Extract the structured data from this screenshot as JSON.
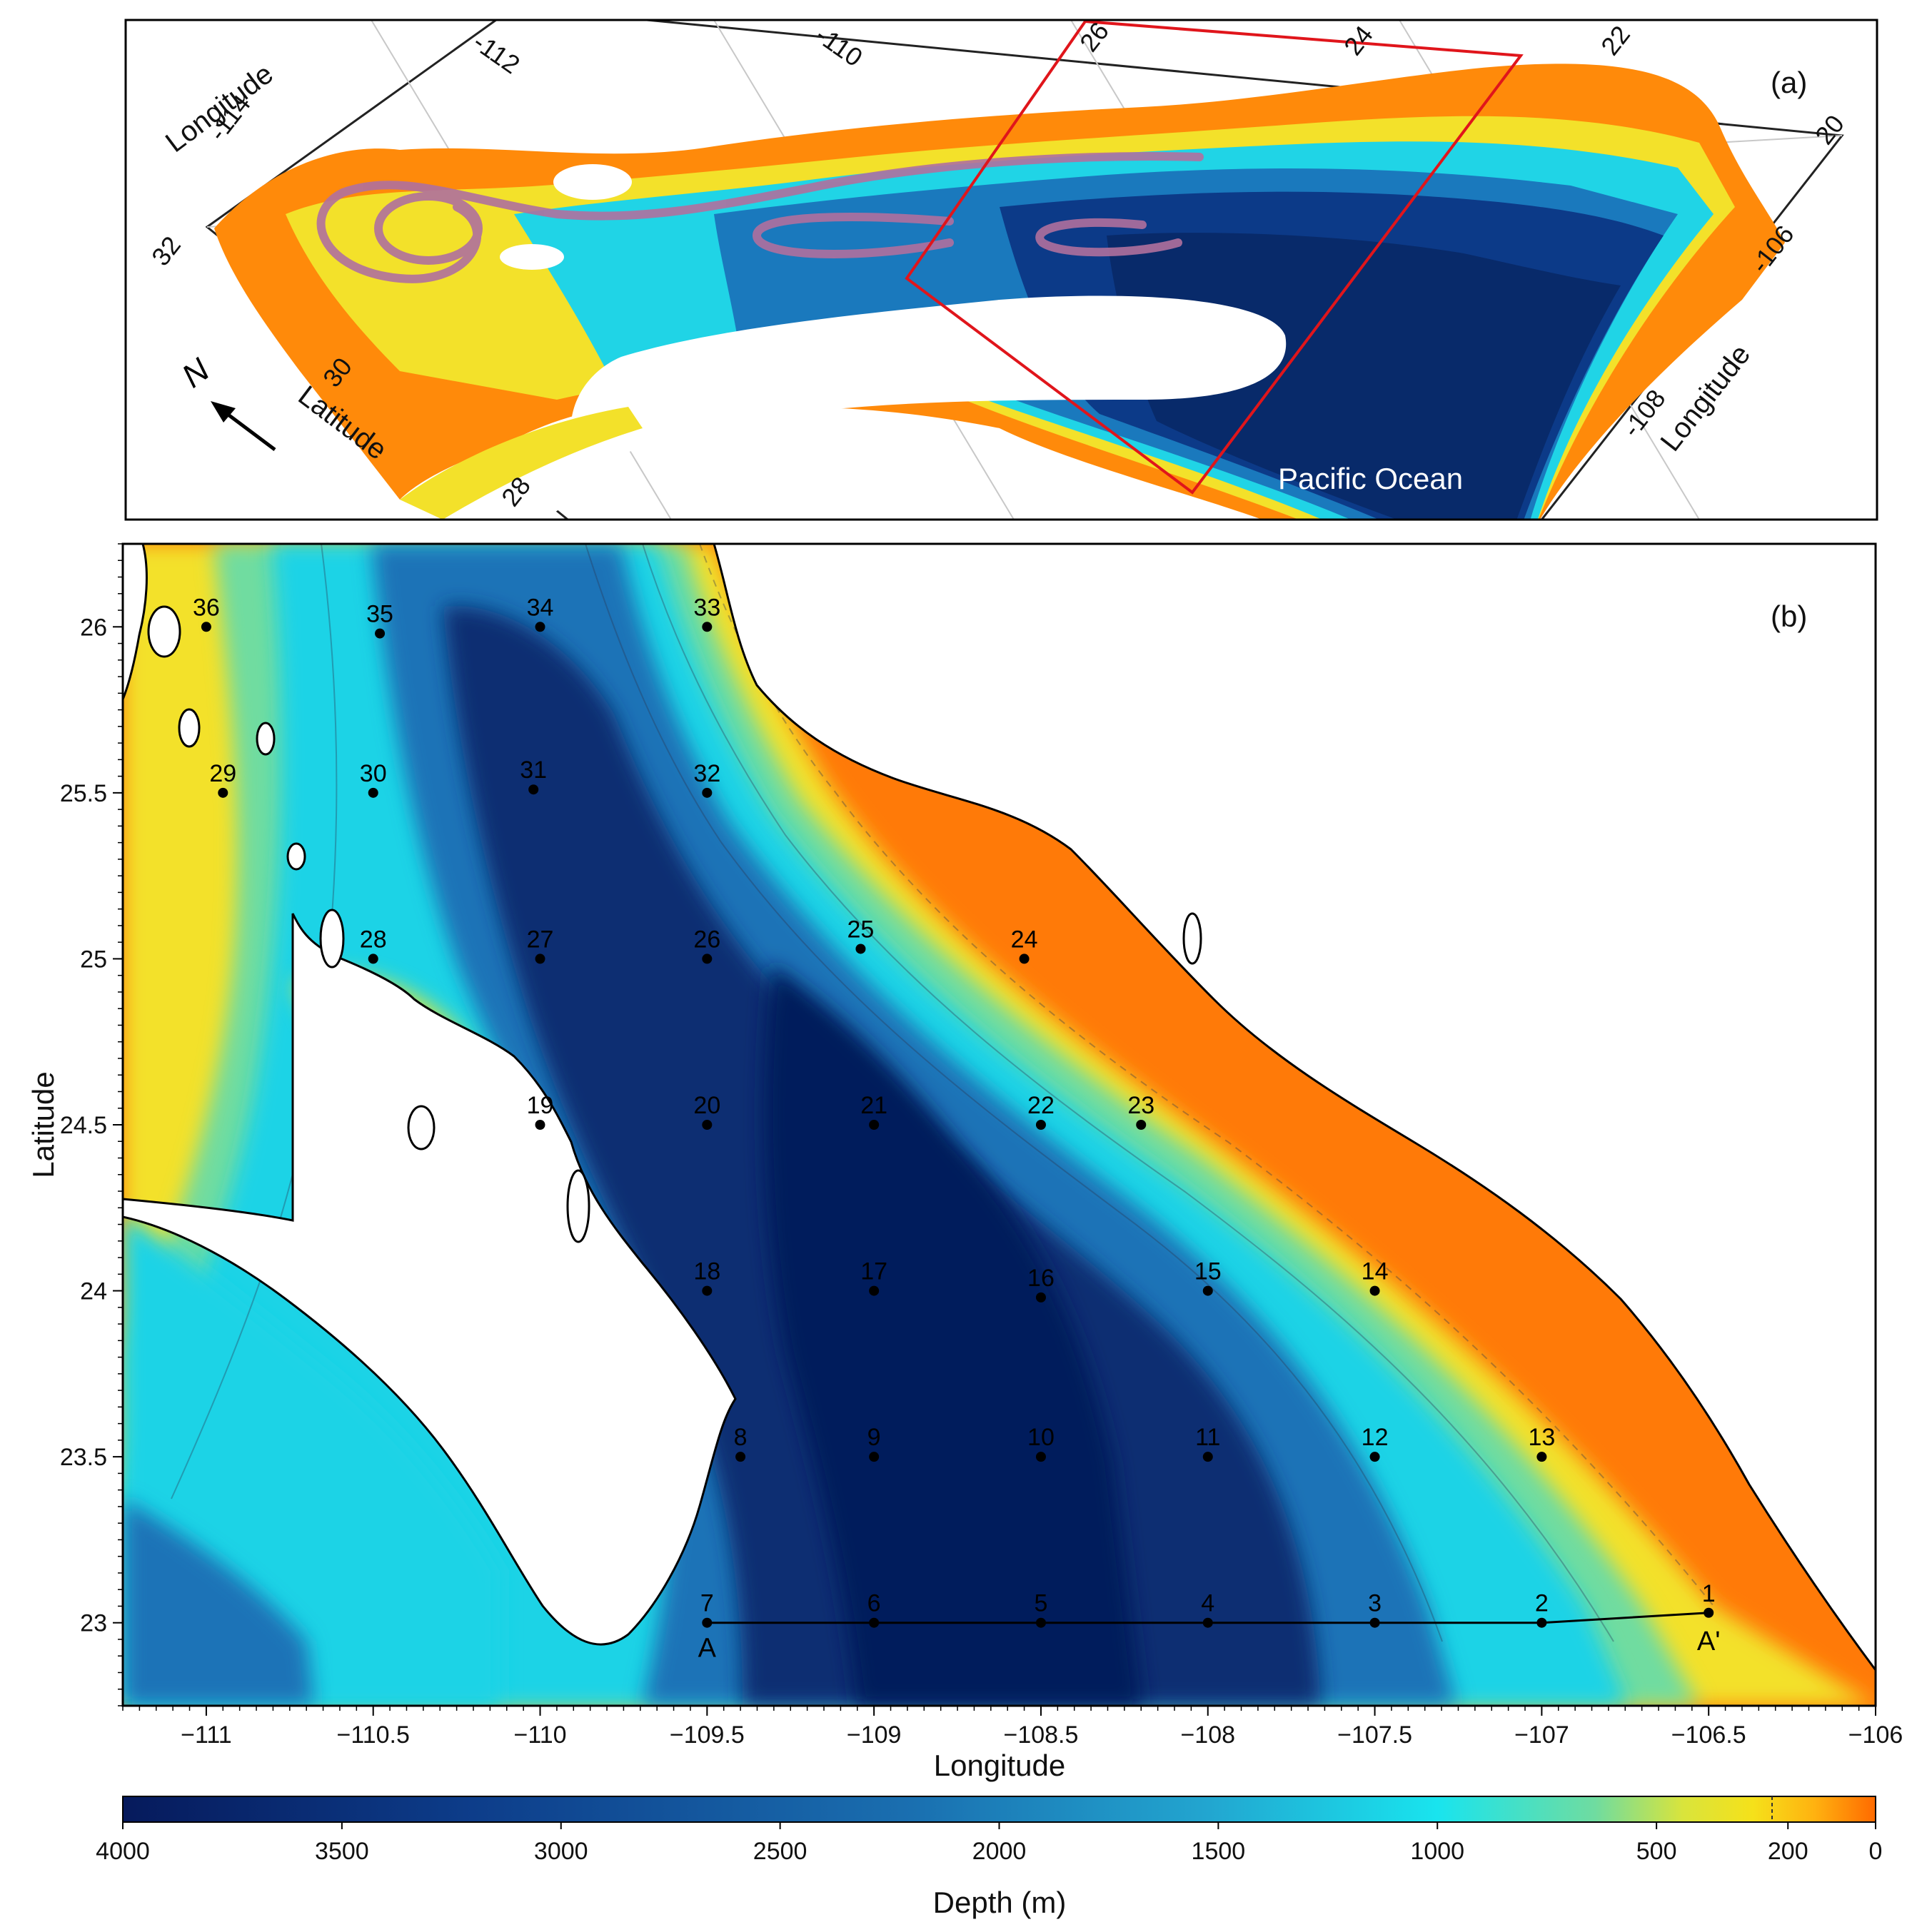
{
  "panel_a": {
    "label": "(a)",
    "ocean_label": "Pacific Ocean",
    "north_label": "N",
    "axis_labels": [
      {
        "id": "lon-top",
        "text": "Longitude"
      },
      {
        "id": "lat-left",
        "text": "Latitude"
      },
      {
        "id": "lon-right",
        "text": "Longitude"
      }
    ],
    "ticks": [
      {
        "id": "t-114",
        "text": "-114"
      },
      {
        "id": "t-112",
        "text": "-112"
      },
      {
        "id": "t-110",
        "text": "-110"
      },
      {
        "id": "t-108",
        "text": "-108"
      },
      {
        "id": "t-106",
        "text": "-106"
      },
      {
        "id": "t32",
        "text": "32"
      },
      {
        "id": "t30",
        "text": "30"
      },
      {
        "id": "t28",
        "text": "28"
      },
      {
        "id": "t26",
        "text": "26"
      },
      {
        "id": "t24",
        "text": "24"
      },
      {
        "id": "t22",
        "text": "22"
      },
      {
        "id": "t20",
        "text": "20"
      }
    ]
  },
  "panel_b": {
    "label": "(b)",
    "xlabel": "Longitude",
    "ylabel": "Latitude",
    "xlim": [
      -111.25,
      -106
    ],
    "ylim": [
      22.75,
      26.25
    ],
    "x_ticks": [
      {
        "value": -111,
        "label": "−111"
      },
      {
        "value": -110.5,
        "label": "−110.5"
      },
      {
        "value": -110,
        "label": "−110"
      },
      {
        "value": -109.5,
        "label": "−109.5"
      },
      {
        "value": -109,
        "label": "−109"
      },
      {
        "value": -108.5,
        "label": "−108.5"
      },
      {
        "value": -108,
        "label": "−108"
      },
      {
        "value": -107.5,
        "label": "−107.5"
      },
      {
        "value": -107,
        "label": "−107"
      },
      {
        "value": -106.5,
        "label": "−106.5"
      },
      {
        "value": -106,
        "label": "−106"
      }
    ],
    "y_ticks": [
      {
        "value": 26,
        "label": "26"
      },
      {
        "value": 25.5,
        "label": "25.5"
      },
      {
        "value": 25,
        "label": "25"
      },
      {
        "value": 24.5,
        "label": "24.5"
      },
      {
        "value": 24,
        "label": "24"
      },
      {
        "value": 23.5,
        "label": "23.5"
      },
      {
        "value": 23,
        "label": "23"
      }
    ],
    "stations": [
      {
        "id": "1",
        "lon": -106.5,
        "lat": 23.03
      },
      {
        "id": "2",
        "lon": -107,
        "lat": 23
      },
      {
        "id": "3",
        "lon": -107.5,
        "lat": 23
      },
      {
        "id": "4",
        "lon": -108,
        "lat": 23
      },
      {
        "id": "5",
        "lon": -108.5,
        "lat": 23
      },
      {
        "id": "6",
        "lon": -109,
        "lat": 23
      },
      {
        "id": "7",
        "lon": -109.5,
        "lat": 23
      },
      {
        "id": "8",
        "lon": -109.4,
        "lat": 23.5
      },
      {
        "id": "9",
        "lon": -109,
        "lat": 23.5
      },
      {
        "id": "10",
        "lon": -108.5,
        "lat": 23.5
      },
      {
        "id": "11",
        "lon": -108,
        "lat": 23.5
      },
      {
        "id": "12",
        "lon": -107.5,
        "lat": 23.5
      },
      {
        "id": "13",
        "lon": -107,
        "lat": 23.5
      },
      {
        "id": "14",
        "lon": -107.5,
        "lat": 24
      },
      {
        "id": "15",
        "lon": -108,
        "lat": 24
      },
      {
        "id": "16",
        "lon": -108.5,
        "lat": 23.98
      },
      {
        "id": "17",
        "lon": -109,
        "lat": 24
      },
      {
        "id": "18",
        "lon": -109.5,
        "lat": 24
      },
      {
        "id": "19",
        "lon": -110,
        "lat": 24.5
      },
      {
        "id": "20",
        "lon": -109.5,
        "lat": 24.5
      },
      {
        "id": "21",
        "lon": -109,
        "lat": 24.5
      },
      {
        "id": "22",
        "lon": -108.5,
        "lat": 24.5
      },
      {
        "id": "23",
        "lon": -108.2,
        "lat": 24.5
      },
      {
        "id": "24",
        "lon": -108.55,
        "lat": 25
      },
      {
        "id": "25",
        "lon": -109.04,
        "lat": 25.03
      },
      {
        "id": "26",
        "lon": -109.5,
        "lat": 25
      },
      {
        "id": "27",
        "lon": -110,
        "lat": 25
      },
      {
        "id": "28",
        "lon": -110.5,
        "lat": 25
      },
      {
        "id": "29",
        "lon": -110.95,
        "lat": 25.5
      },
      {
        "id": "30",
        "lon": -110.5,
        "lat": 25.5
      },
      {
        "id": "31",
        "lon": -110.02,
        "lat": 25.51
      },
      {
        "id": "32",
        "lon": -109.5,
        "lat": 25.5
      },
      {
        "id": "33",
        "lon": -109.5,
        "lat": 26
      },
      {
        "id": "34",
        "lon": -110,
        "lat": 26
      },
      {
        "id": "35",
        "lon": -110.48,
        "lat": 25.98
      },
      {
        "id": "36",
        "lon": -111,
        "lat": 26
      }
    ],
    "transect": {
      "start_label": "A",
      "end_label": "A'"
    }
  },
  "colorbar": {
    "label": "Depth (m)",
    "range": [
      4000,
      0
    ],
    "ticks": [
      {
        "value": 4000,
        "label": "4000"
      },
      {
        "value": 3500,
        "label": "3500"
      },
      {
        "value": 3000,
        "label": "3000"
      },
      {
        "value": 2500,
        "label": "2500"
      },
      {
        "value": 2000,
        "label": "2000"
      },
      {
        "value": 1500,
        "label": "1500"
      },
      {
        "value": 1000,
        "label": "1000"
      },
      {
        "value": 500,
        "label": "500"
      },
      {
        "value": 200,
        "label": "200"
      },
      {
        "value": 0,
        "label": "0"
      }
    ],
    "gradient": [
      "#061a5c",
      "#0d3d8a",
      "#1a6fb0",
      "#22a6d0",
      "#19e4ee",
      "#6fdca0",
      "#d9e43c",
      "#f5e11a",
      "#ffb210",
      "#ff6a00"
    ]
  },
  "colors": {
    "deep": "#0a2d72",
    "mid": "#1c73b7",
    "cyan": "#1fd3e6",
    "shelf": "#f4dc28",
    "coast": "#ff7a08",
    "box": "#e0151b",
    "current": "#b0709e"
  }
}
